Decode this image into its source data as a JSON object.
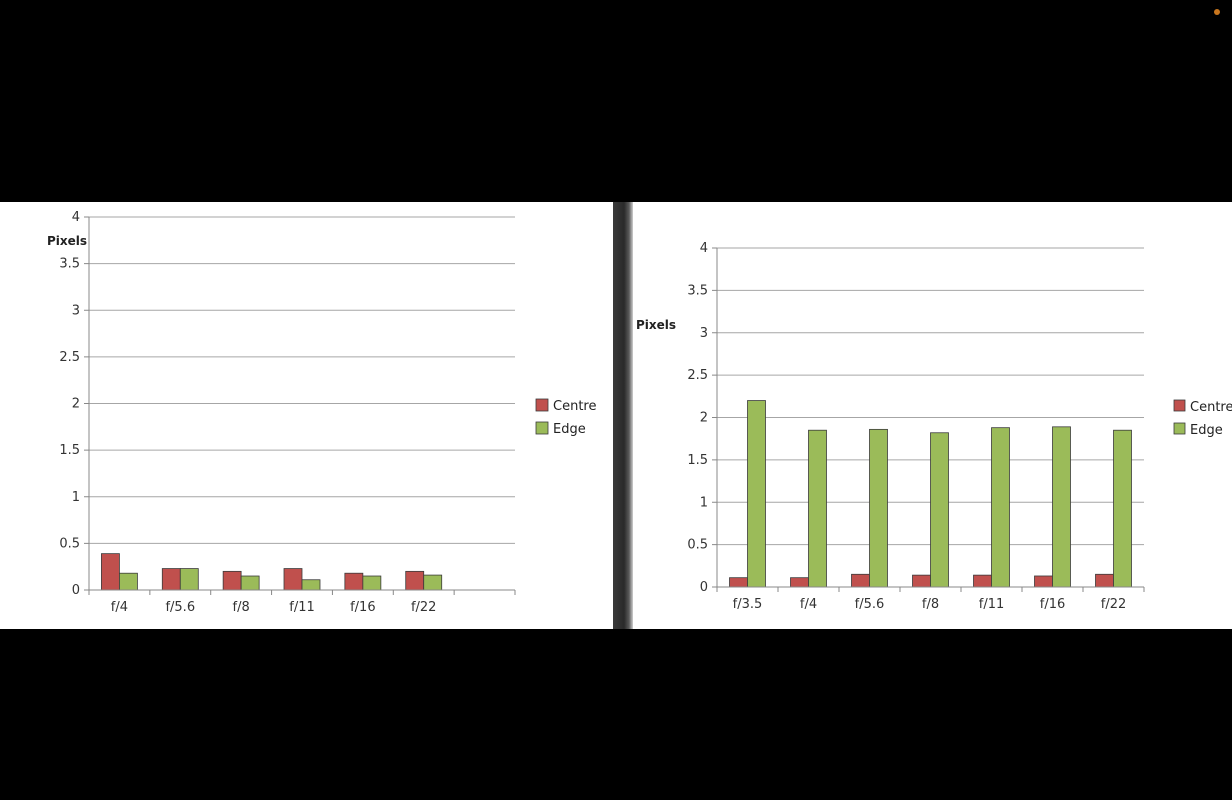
{
  "chart_data": [
    {
      "type": "bar",
      "title": "",
      "ylabel": "Pixels",
      "xlabel": "",
      "ylim": [
        0,
        4
      ],
      "yticks": [
        "0",
        "0.5",
        "1",
        "1.5",
        "2",
        "2.5",
        "3",
        "3.5",
        "4"
      ],
      "categories": [
        "f/4",
        "f/5.6",
        "f/8",
        "f/11",
        "f/16",
        "f/22"
      ],
      "series": [
        {
          "name": "Centre",
          "color": "#c0504d",
          "values": [
            0.39,
            0.23,
            0.2,
            0.23,
            0.18,
            0.2
          ]
        },
        {
          "name": "Edge",
          "color": "#9bbb59",
          "values": [
            0.18,
            0.23,
            0.15,
            0.11,
            0.15,
            0.16
          ]
        }
      ],
      "grid": true,
      "legend": "right"
    },
    {
      "type": "bar",
      "title": "",
      "ylabel": "Pixels",
      "xlabel": "",
      "ylim": [
        0,
        4
      ],
      "yticks": [
        "0",
        "0.5",
        "1",
        "1.5",
        "2",
        "2.5",
        "3",
        "3.5",
        "4"
      ],
      "categories": [
        "f/3.5",
        "f/4",
        "f/5.6",
        "f/8",
        "f/11",
        "f/16",
        "f/22"
      ],
      "series": [
        {
          "name": "Centre",
          "color": "#c0504d",
          "values": [
            0.11,
            0.11,
            0.15,
            0.14,
            0.14,
            0.13,
            0.15
          ]
        },
        {
          "name": "Edge",
          "color": "#9bbb59",
          "values": [
            2.2,
            1.85,
            1.86,
            1.82,
            1.88,
            1.89,
            1.85
          ]
        }
      ],
      "grid": true,
      "legend": "right"
    }
  ]
}
